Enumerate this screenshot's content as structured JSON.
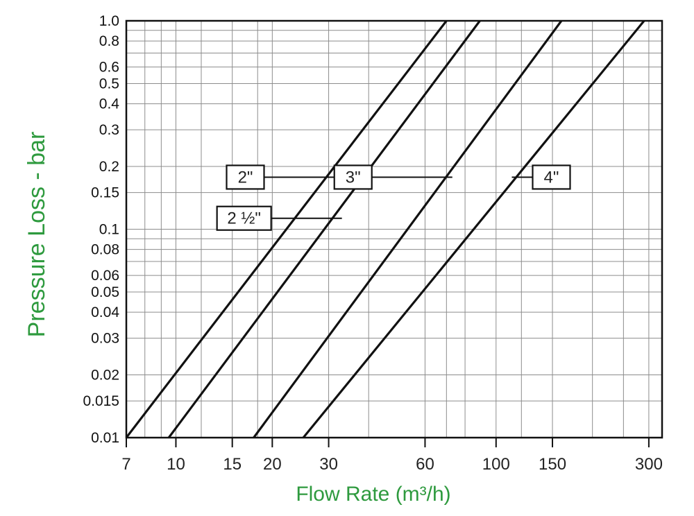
{
  "chart_data": {
    "type": "line",
    "xlabel": "Flow Rate (m³/h)",
    "ylabel": "Pressure Loss - bar",
    "x_scale": "log",
    "y_scale": "log",
    "xlim": [
      7,
      330
    ],
    "ylim": [
      0.01,
      1.0
    ],
    "x_tick_labels": [
      "7",
      "10",
      "15",
      "20",
      "30",
      "60",
      "100",
      "150",
      "300"
    ],
    "x_tick_values": [
      7,
      10,
      15,
      20,
      30,
      60,
      100,
      150,
      300
    ],
    "x_grid_values": [
      8,
      9,
      10,
      12,
      15,
      18,
      20,
      30,
      40,
      60,
      70,
      80,
      100,
      120,
      150,
      200,
      250,
      300
    ],
    "y_tick_labels": [
      "1.0",
      "0.8",
      "0.6",
      "0.5",
      "0.4",
      "0.3",
      "0.2",
      "0.15",
      "0.1",
      "0.08",
      "0.06",
      "0.05",
      "0.04",
      "0.03",
      "0.02",
      "0.015",
      "0.01"
    ],
    "y_tick_values": [
      1.0,
      0.8,
      0.6,
      0.5,
      0.4,
      0.3,
      0.2,
      0.15,
      0.1,
      0.08,
      0.06,
      0.05,
      0.04,
      0.03,
      0.02,
      0.015,
      0.01
    ],
    "y_grid_values": [
      0.9,
      0.8,
      0.7,
      0.6,
      0.5,
      0.4,
      0.3,
      0.2,
      0.15,
      0.1,
      0.09,
      0.08,
      0.07,
      0.06,
      0.05,
      0.04,
      0.03,
      0.02,
      0.015
    ],
    "grid": true,
    "series": [
      {
        "name": "2\"",
        "x": [
          7,
          70
        ],
        "y": [
          0.01,
          1.0
        ],
        "label_at": [
          32,
          0.175
        ]
      },
      {
        "name": "2 ½\"",
        "x": [
          9.5,
          89
        ],
        "y": [
          0.01,
          1.0
        ],
        "label_at": [
          33,
          0.12
        ]
      },
      {
        "name": "3\"",
        "x": [
          17.5,
          160
        ],
        "y": [
          0.01,
          1.0
        ],
        "label_at": [
          73,
          0.175
        ]
      },
      {
        "name": "4\"",
        "x": [
          25,
          290
        ],
        "y": [
          0.01,
          1.0
        ],
        "label_at": [
          112,
          0.175
        ]
      }
    ]
  },
  "colors": {
    "axis_title": "#2e9a3e",
    "lines": "#111111",
    "grid": "#8c8c8c"
  }
}
